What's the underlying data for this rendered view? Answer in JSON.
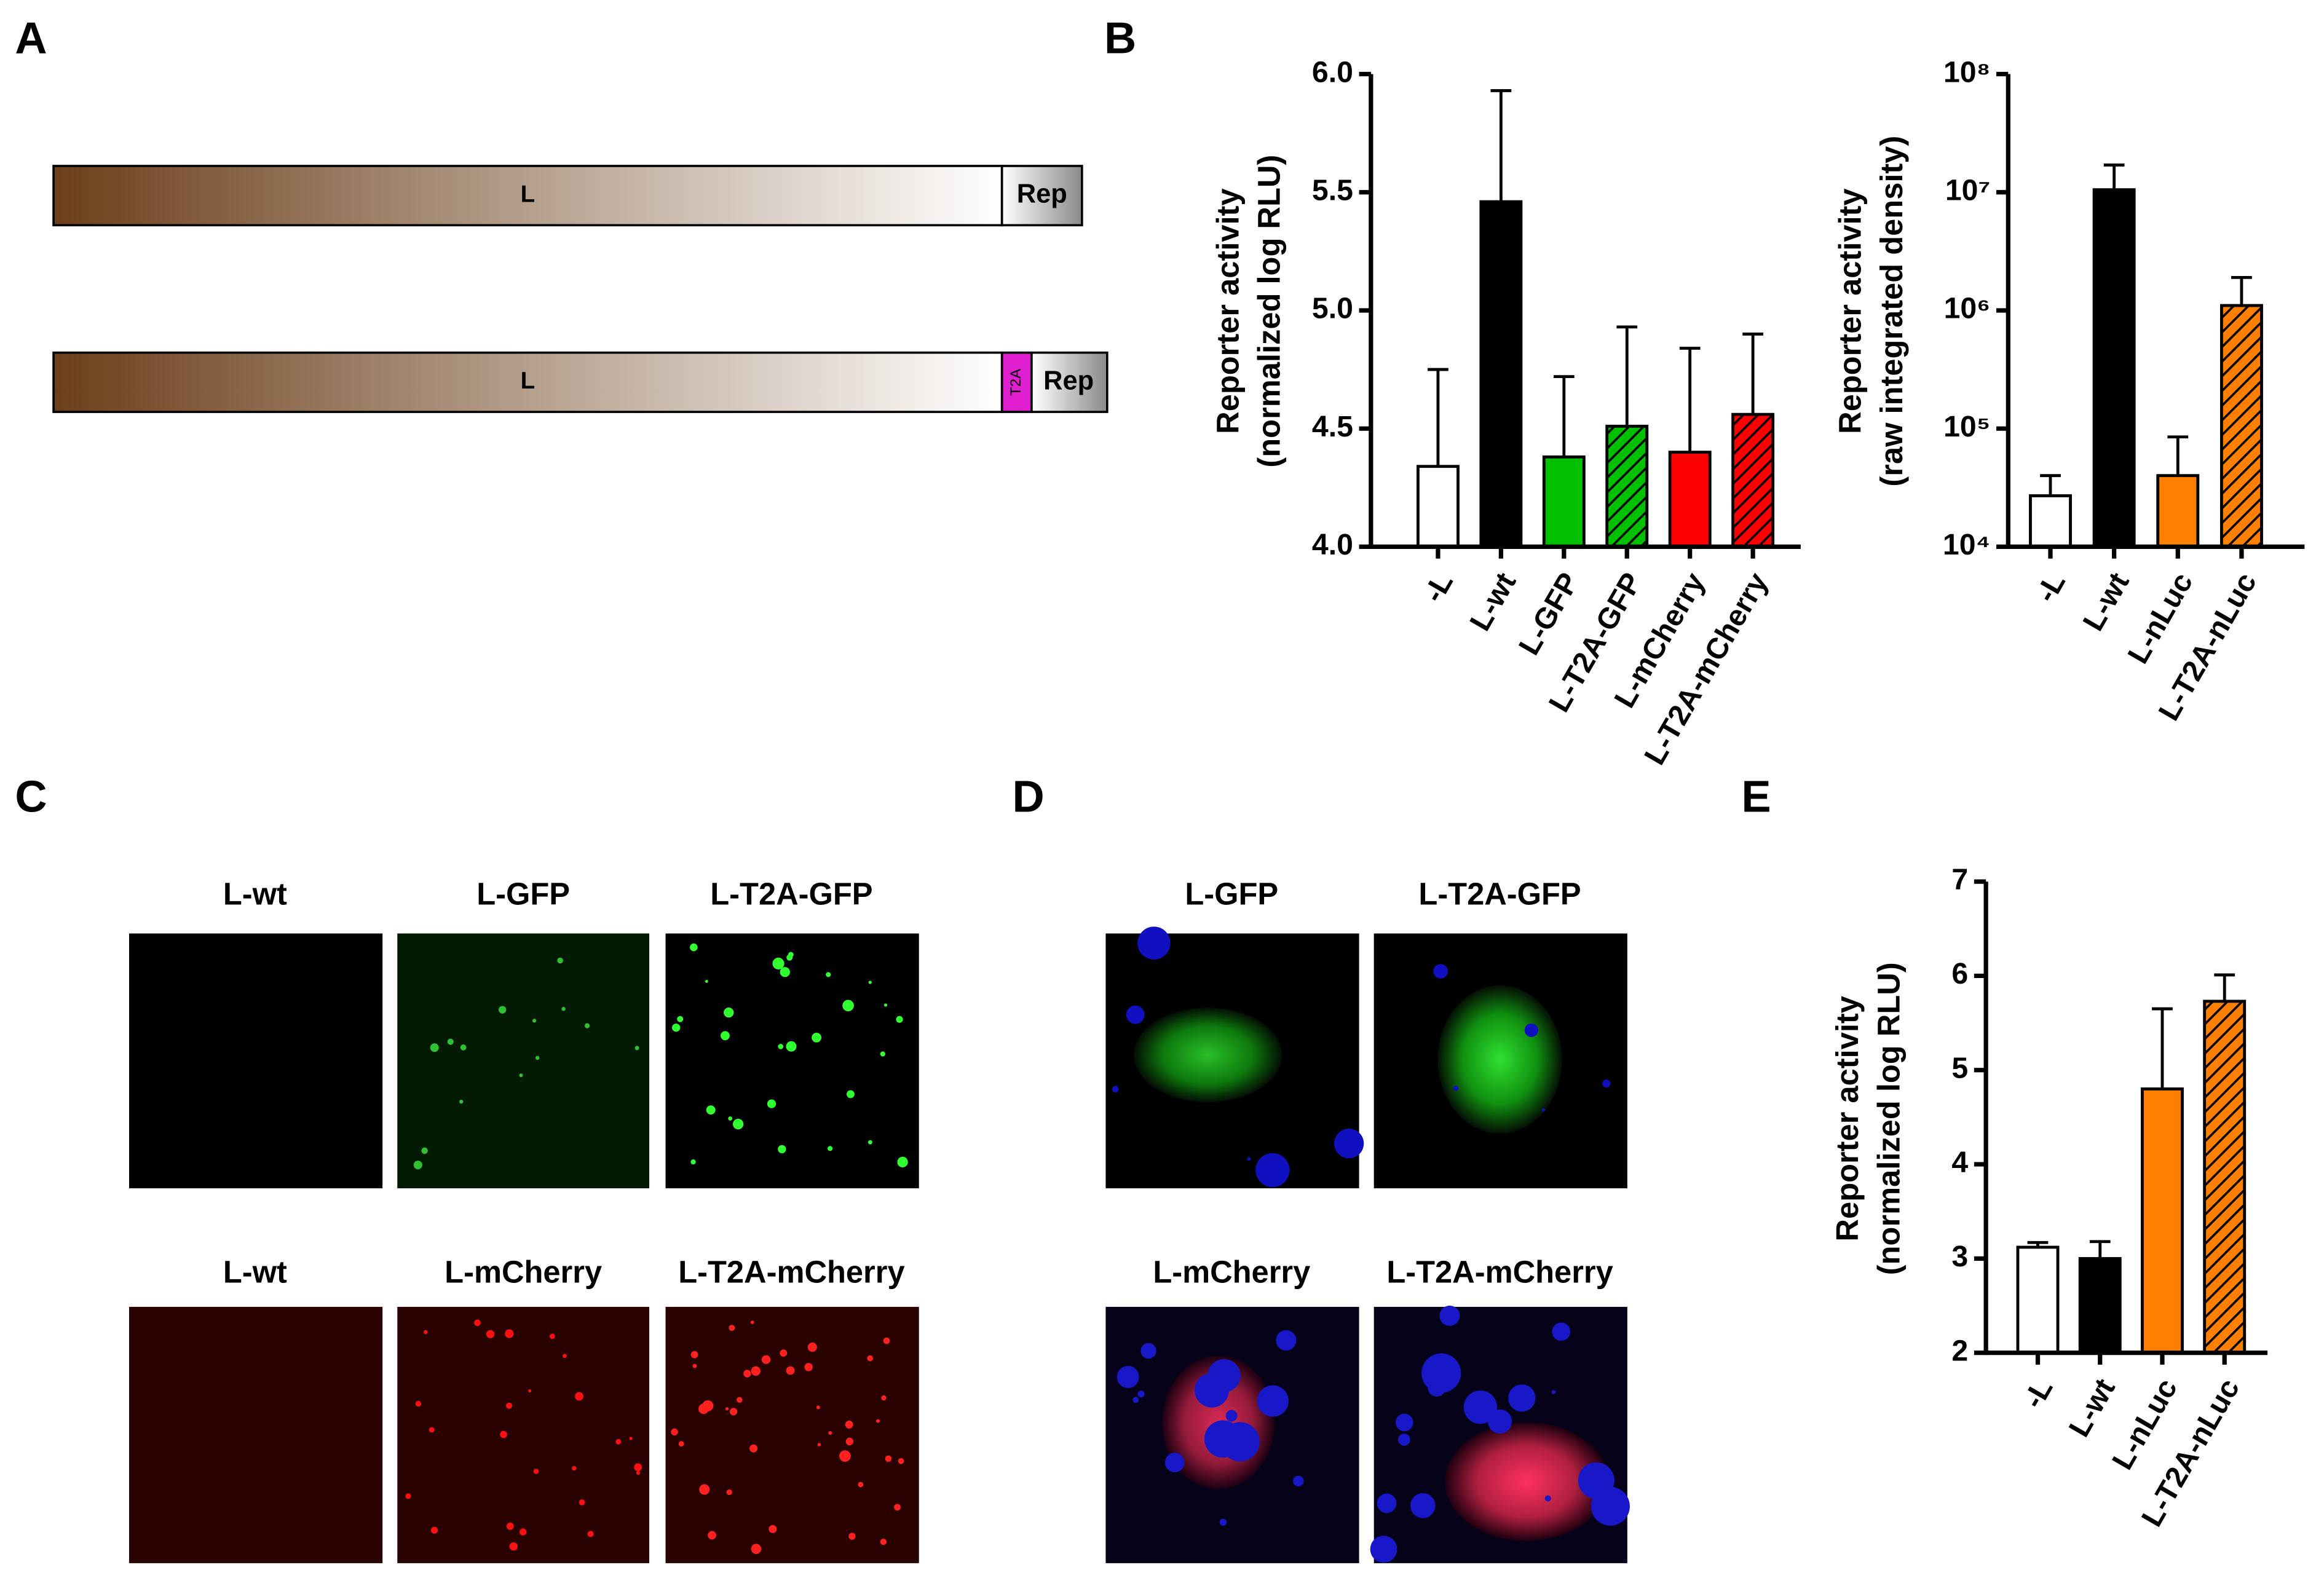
{
  "panel_labels": [
    "A",
    "B",
    "C",
    "D",
    "E"
  ],
  "diagram": {
    "constructs": [
      {
        "segments": [
          "L",
          "Rep"
        ]
      },
      {
        "segments": [
          "L",
          "T2A",
          "Rep"
        ]
      }
    ]
  },
  "images_c": {
    "labels": [
      [
        "L-wt",
        "L-GFP",
        "L-T2A-GFP"
      ],
      [
        "L-wt",
        "L-mCherry",
        "L-T2A-mCherry"
      ]
    ]
  },
  "images_d": {
    "labels": [
      [
        "L-GFP",
        "L-T2A-GFP"
      ],
      [
        "L-mCherry",
        "L-T2A-mCherry"
      ]
    ]
  },
  "chart_data": [
    {
      "type": "bar",
      "ylabel": [
        "Reporter activity",
        "(normalized log RLU)"
      ],
      "categories": [
        "-L",
        "L-wt",
        "L-GFP",
        "L-T2A-GFP",
        "L-mCherry",
        "L-T2A-mCherry"
      ],
      "values": [
        4.34,
        5.46,
        4.38,
        4.51,
        4.4,
        4.56
      ],
      "errors": [
        0.41,
        0.47,
        0.34,
        0.42,
        0.44,
        0.34
      ],
      "colors": [
        "#ffffff",
        "#000000",
        "#00c000",
        "#00c000",
        "#ff0000",
        "#ff0000"
      ],
      "hatched": [
        false,
        false,
        false,
        true,
        false,
        true
      ],
      "log": false,
      "ylim": [
        4,
        6
      ],
      "yticks": [
        {
          "value": 4,
          "label": "4.0"
        },
        4.5,
        {
          "value": 5,
          "label": "5.0"
        },
        5.5,
        {
          "value": 6,
          "label": "6.0"
        }
      ]
    },
    {
      "type": "bar",
      "ylabel": [
        "Reporter activity",
        "(raw integrated density)"
      ],
      "categories": [
        "-L",
        "L-wt",
        "L-nLuc",
        "L-T2A-nLuc"
      ],
      "values": [
        27000,
        10500000,
        40000,
        1100000
      ],
      "errors": [
        13000,
        6500000,
        45000,
        800000
      ],
      "colors": [
        "#ffffff",
        "#000000",
        "#ff8000",
        "#ff8000"
      ],
      "hatched": [
        false,
        false,
        false,
        true
      ],
      "log": true,
      "ylim": [
        10000,
        100000000
      ],
      "yticks": [
        {
          "value": 10000,
          "label": "10⁴"
        },
        {
          "value": 100000,
          "label": "10⁵"
        },
        {
          "value": 1000000,
          "label": "10⁶"
        },
        {
          "value": 10000000,
          "label": "10⁷"
        },
        {
          "value": 100000000,
          "label": "10⁸"
        }
      ]
    },
    {
      "type": "bar",
      "ylabel": [
        "Reporter activity",
        "(normalized log RLU)"
      ],
      "categories": [
        "-L",
        "L-wt",
        "L-nLuc",
        "L-T2A-nLuc"
      ],
      "values": [
        3.12,
        3.0,
        4.8,
        5.73
      ],
      "errors": [
        0.05,
        0.18,
        0.85,
        0.28
      ],
      "colors": [
        "#ffffff",
        "#000000",
        "#ff8000",
        "#ff8000"
      ],
      "hatched": [
        false,
        false,
        false,
        true
      ],
      "log": false,
      "ylim": [
        2,
        7
      ],
      "yticks": [
        2,
        3,
        4,
        5,
        6,
        7
      ]
    }
  ]
}
